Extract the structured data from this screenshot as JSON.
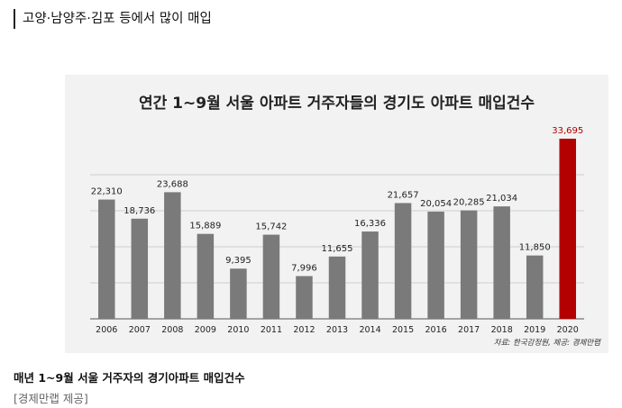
{
  "heading": "고양·남양주·김포 등에서 많이 매입",
  "caption": "매년 1~9월 서울 거주자의 경기아파트 매입건수",
  "credit": "[경제만랩 제공]",
  "chart_data": {
    "type": "bar",
    "title": "연간 1~9월 서울 아파트 거주자들의 경기도 아파트 매입건수",
    "categories": [
      "2006",
      "2007",
      "2008",
      "2009",
      "2010",
      "2011",
      "2012",
      "2013",
      "2014",
      "2015",
      "2016",
      "2017",
      "2018",
      "2019",
      "2020"
    ],
    "values": [
      22310,
      18736,
      23688,
      15889,
      9395,
      15742,
      7996,
      11655,
      16336,
      21657,
      20054,
      20285,
      21034,
      11850,
      33695
    ],
    "labels": [
      "22,310",
      "18,736",
      "23,688",
      "15,889",
      "9,395",
      "15,742",
      "7,996",
      "11,655",
      "16,336",
      "21,657",
      "20,054",
      "20,285",
      "21,034",
      "11,850",
      "33,695"
    ],
    "ylim": [
      0,
      33695
    ],
    "grid": true,
    "bar_color": "#7a7a7a",
    "highlight_color": "#b30000",
    "highlight_index": 14,
    "source": "자료: 한국감정원, 제공: 경제만랩"
  }
}
